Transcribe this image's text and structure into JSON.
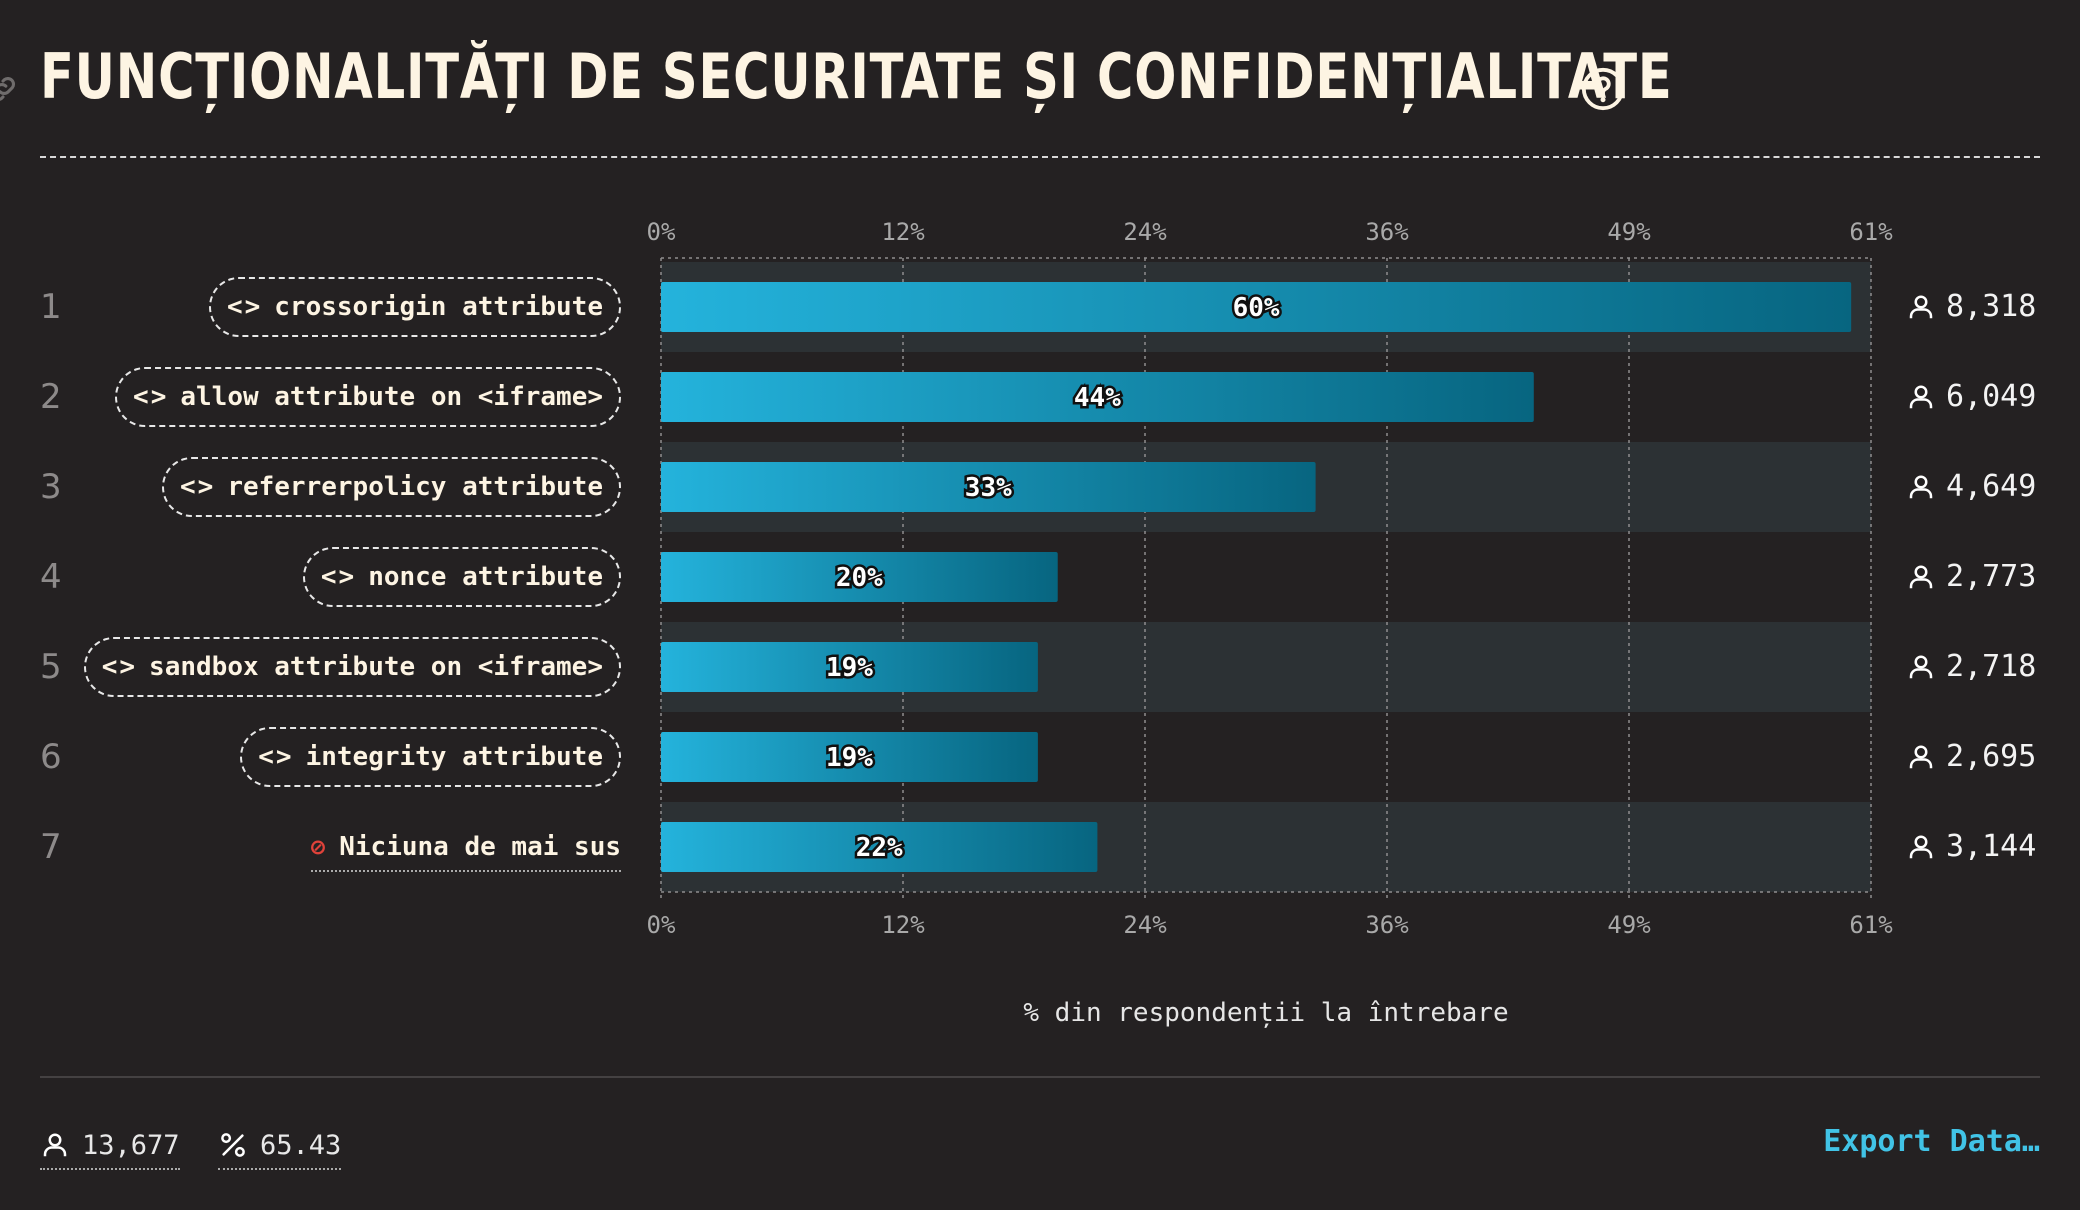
{
  "title": "FUNCȚIONALITĂȚI DE SECURITATE ȘI CONFIDENȚIALITATE",
  "icons": {
    "link": "link-icon",
    "help": "help-circle-icon",
    "code": "code-brackets-icon",
    "none": "prohibited-icon",
    "user": "user-icon",
    "percent": "percent-icon"
  },
  "colors": {
    "background": "#242122",
    "row_band": "#2c3134",
    "bar_start": "#24b3dc",
    "bar_end": "#076580",
    "accent": "#41c3e6",
    "title": "#fdf4e3"
  },
  "chart_data": {
    "type": "bar",
    "orientation": "horizontal",
    "categories": [
      "crossorigin attribute",
      "allow attribute on <iframe>",
      "referrerpolicy attribute",
      "nonce attribute",
      "sandbox attribute on <iframe>",
      "integrity attribute",
      "Niciuna de mai sus"
    ],
    "row_numbers": [
      "1",
      "2",
      "3",
      "4",
      "5",
      "6",
      "7"
    ],
    "values": [
      60,
      44,
      33,
      20,
      19,
      19,
      22
    ],
    "value_labels": [
      "60%",
      "44%",
      "33%",
      "20%",
      "19%",
      "19%",
      "22%"
    ],
    "counts": [
      "8,318",
      "6,049",
      "4,649",
      "2,773",
      "2,718",
      "2,695",
      "3,144"
    ],
    "xticks": [
      "0%",
      "12%",
      "24%",
      "36%",
      "49%",
      "61%"
    ],
    "xlim": [
      0,
      61
    ],
    "xlabel": "% din respondenții la întrebare",
    "grid": true
  },
  "footer": {
    "respondents": "13,677",
    "percent": "65.43",
    "export_label": "Export Data…"
  }
}
